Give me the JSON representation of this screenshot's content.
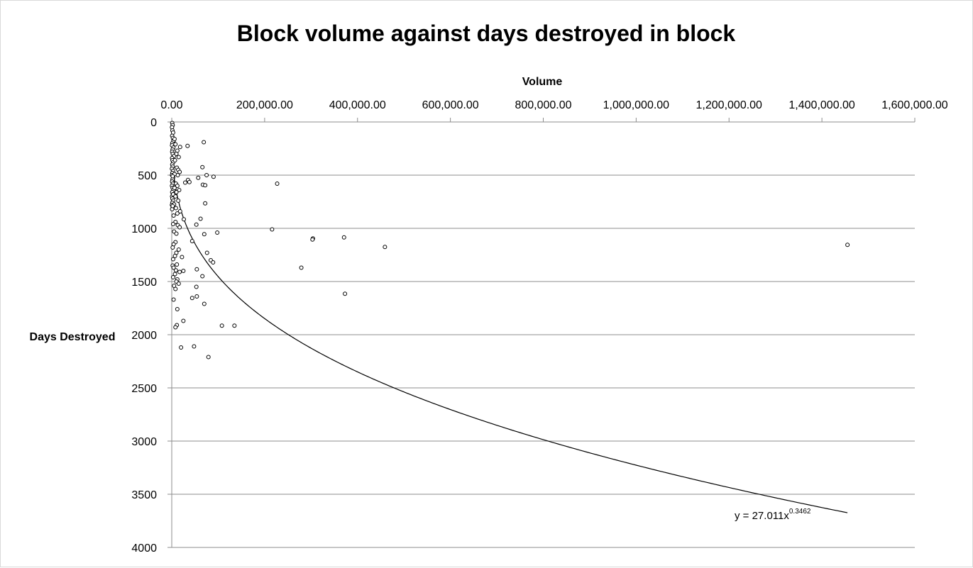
{
  "chart_data": {
    "type": "scatter",
    "title": "Block volume against days destroyed in block",
    "xlabel": "Volume",
    "ylabel": "Days Destroyed",
    "x_axis_position": "top",
    "y_axis_inverted": true,
    "xlim": [
      0,
      1600000
    ],
    "ylim": [
      0,
      4000
    ],
    "x_ticks": [
      0,
      200000,
      400000,
      600000,
      800000,
      1000000,
      1200000,
      1400000,
      1600000
    ],
    "x_tick_labels": [
      "0.00",
      "200,000.00",
      "400,000.00",
      "600,000.00",
      "800,000.00",
      "1,000,000.00",
      "1,200,000.00",
      "1,400,000.00",
      "1,600,000.00"
    ],
    "y_ticks": [
      0,
      500,
      1000,
      1500,
      2000,
      2500,
      3000,
      3500,
      4000
    ],
    "y_tick_labels": [
      "0",
      "500",
      "1000",
      "1500",
      "2000",
      "2500",
      "3000",
      "3500",
      "4000"
    ],
    "grid": "horizontal",
    "legend": "none",
    "marker": "open-circle",
    "trendline": {
      "type": "power",
      "coefficient": 27.011,
      "exponent": 0.3462,
      "x_range": [
        0,
        1455000
      ],
      "equation_label": "y = 27.011x",
      "equation_exponent_label": "0.3462"
    },
    "series": [
      {
        "points": [
          [
            1000,
            10
          ],
          [
            2000,
            30
          ],
          [
            500,
            50
          ],
          [
            1500,
            80
          ],
          [
            3000,
            100
          ],
          [
            800,
            130
          ],
          [
            2500,
            150
          ],
          [
            4000,
            180
          ],
          [
            1200,
            200
          ],
          [
            600,
            220
          ],
          [
            3500,
            240
          ],
          [
            1800,
            260
          ],
          [
            900,
            280
          ],
          [
            2200,
            300
          ],
          [
            5000,
            320
          ],
          [
            700,
            340
          ],
          [
            1600,
            360
          ],
          [
            3000,
            380
          ],
          [
            1100,
            400
          ],
          [
            2000,
            420
          ],
          [
            400,
            440
          ],
          [
            2800,
            460
          ],
          [
            1300,
            480
          ],
          [
            600,
            500
          ],
          [
            3200,
            520
          ],
          [
            1700,
            540
          ],
          [
            900,
            560
          ],
          [
            2400,
            580
          ],
          [
            500,
            600
          ],
          [
            1900,
            620
          ],
          [
            3600,
            640
          ],
          [
            1000,
            660
          ],
          [
            2600,
            680
          ],
          [
            700,
            700
          ],
          [
            1400,
            720
          ],
          [
            3000,
            740
          ],
          [
            1200,
            760
          ],
          [
            400,
            780
          ],
          [
            2100,
            800
          ],
          [
            800,
            820
          ],
          [
            69000,
            190
          ],
          [
            34000,
            225
          ],
          [
            18000,
            235
          ],
          [
            8000,
            210
          ],
          [
            12000,
            270
          ],
          [
            4000,
            175
          ],
          [
            6000,
            160
          ],
          [
            10000,
            300
          ],
          [
            15000,
            330
          ],
          [
            7000,
            360
          ],
          [
            66000,
            425
          ],
          [
            11000,
            430
          ],
          [
            14000,
            450
          ],
          [
            17000,
            470
          ],
          [
            13000,
            500
          ],
          [
            57000,
            525
          ],
          [
            6000,
            490
          ],
          [
            2000,
            510
          ],
          [
            90000,
            515
          ],
          [
            75000,
            500
          ],
          [
            35000,
            545
          ],
          [
            29000,
            570
          ],
          [
            38000,
            565
          ],
          [
            67000,
            590
          ],
          [
            72000,
            595
          ],
          [
            227000,
            580
          ],
          [
            9000,
            580
          ],
          [
            12000,
            600
          ],
          [
            6000,
            620
          ],
          [
            16000,
            640
          ],
          [
            10000,
            660
          ],
          [
            3000,
            680
          ],
          [
            8000,
            700
          ],
          [
            14000,
            740
          ],
          [
            72000,
            765
          ],
          [
            5000,
            775
          ],
          [
            2000,
            790
          ],
          [
            9000,
            810
          ],
          [
            18000,
            840
          ],
          [
            12000,
            860
          ],
          [
            4000,
            880
          ],
          [
            26000,
            915
          ],
          [
            62000,
            910
          ],
          [
            8000,
            940
          ],
          [
            3000,
            960
          ],
          [
            13000,
            970
          ],
          [
            53000,
            965
          ],
          [
            17000,
            990
          ],
          [
            216000,
            1010
          ],
          [
            5000,
            1030
          ],
          [
            98000,
            1040
          ],
          [
            10000,
            1050
          ],
          [
            70000,
            1055
          ],
          [
            304000,
            1095
          ],
          [
            303000,
            1105
          ],
          [
            371000,
            1085
          ],
          [
            44000,
            1120
          ],
          [
            8000,
            1130
          ],
          [
            4000,
            1150
          ],
          [
            1455000,
            1155
          ],
          [
            459000,
            1175
          ],
          [
            2000,
            1180
          ],
          [
            15000,
            1200
          ],
          [
            10000,
            1230
          ],
          [
            76000,
            1230
          ],
          [
            7000,
            1260
          ],
          [
            22000,
            1270
          ],
          [
            3000,
            1290
          ],
          [
            84000,
            1300
          ],
          [
            89000,
            1320
          ],
          [
            11000,
            1340
          ],
          [
            2000,
            1350
          ],
          [
            279000,
            1370
          ],
          [
            4000,
            1370
          ],
          [
            54000,
            1385
          ],
          [
            9000,
            1395
          ],
          [
            25000,
            1400
          ],
          [
            17000,
            1410
          ],
          [
            7000,
            1430
          ],
          [
            66000,
            1450
          ],
          [
            3000,
            1460
          ],
          [
            12000,
            1480
          ],
          [
            10000,
            1500
          ],
          [
            15000,
            1520
          ],
          [
            5000,
            1540
          ],
          [
            53000,
            1550
          ],
          [
            8000,
            1570
          ],
          [
            373000,
            1615
          ],
          [
            54000,
            1640
          ],
          [
            44000,
            1655
          ],
          [
            4000,
            1670
          ],
          [
            70000,
            1710
          ],
          [
            12000,
            1760
          ],
          [
            25000,
            1870
          ],
          [
            11000,
            1910
          ],
          [
            8000,
            1930
          ],
          [
            108000,
            1915
          ],
          [
            135000,
            1915
          ],
          [
            20000,
            2120
          ],
          [
            48000,
            2110
          ],
          [
            79000,
            2210
          ]
        ]
      }
    ]
  }
}
